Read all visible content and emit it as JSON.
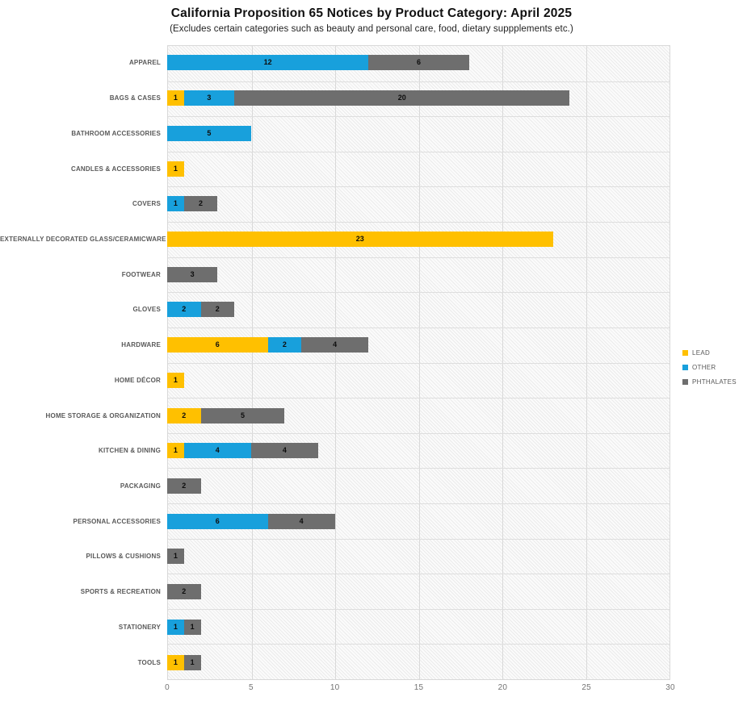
{
  "title": "California Proposition 65 Notices by Product Category: April 2025",
  "subtitle": "(Excludes certain categories such as beauty and personal care, food, dietary suppplements etc.)",
  "colors": {
    "lead": "#FFC000",
    "other": "#18A0DC",
    "phthalates": "#6E6E6E",
    "gridline": "#D9D9D9",
    "category_label": "#595959",
    "tick_label": "#737373"
  },
  "legend": {
    "position": "right",
    "items": [
      {
        "label": "LEAD",
        "color": "#FFC000"
      },
      {
        "label": "OTHER",
        "color": "#18A0DC"
      },
      {
        "label": "PHTHALATES",
        "color": "#6E6E6E"
      }
    ]
  },
  "chart_data": {
    "type": "bar",
    "orientation": "horizontal",
    "stacked": true,
    "title": "California Proposition 65 Notices by Product Category: April 2025",
    "subtitle": "(Excludes certain categories such as beauty and personal care, food, dietary suppplements etc.)",
    "categories": [
      "APPAREL",
      "BAGS & CASES",
      "BATHROOM ACCESSORIES",
      "CANDLES & ACCESSORIES",
      "COVERS",
      "EXTERNALLY DECORATED GLASS/CERAMICWARE",
      "FOOTWEAR",
      "GLOVES",
      "HARDWARE",
      "HOME DÉCOR",
      "HOME STORAGE & ORGANIZATION",
      "KITCHEN & DINING",
      "PACKAGING",
      "PERSONAL ACCESSORIES",
      "PILLOWS & CUSHIONS",
      "SPORTS & RECREATION",
      "STATIONERY",
      "TOOLS"
    ],
    "series": [
      {
        "name": "LEAD",
        "color": "#FFC000",
        "values": [
          0,
          1,
          0,
          1,
          0,
          23,
          0,
          0,
          6,
          1,
          2,
          1,
          0,
          0,
          0,
          0,
          0,
          1
        ]
      },
      {
        "name": "OTHER",
        "color": "#18A0DC",
        "values": [
          12,
          3,
          5,
          0,
          1,
          0,
          0,
          2,
          2,
          0,
          0,
          4,
          0,
          6,
          0,
          0,
          1,
          0
        ]
      },
      {
        "name": "PHTHALATES",
        "color": "#6E6E6E",
        "values": [
          6,
          20,
          0,
          0,
          2,
          0,
          3,
          2,
          4,
          0,
          5,
          4,
          2,
          4,
          1,
          2,
          1,
          1
        ]
      }
    ],
    "xlim": [
      0,
      30
    ],
    "xticks": [
      0,
      5,
      10,
      15,
      20,
      25,
      30
    ],
    "grid": true,
    "data_labels": true,
    "legend_position": "right"
  }
}
